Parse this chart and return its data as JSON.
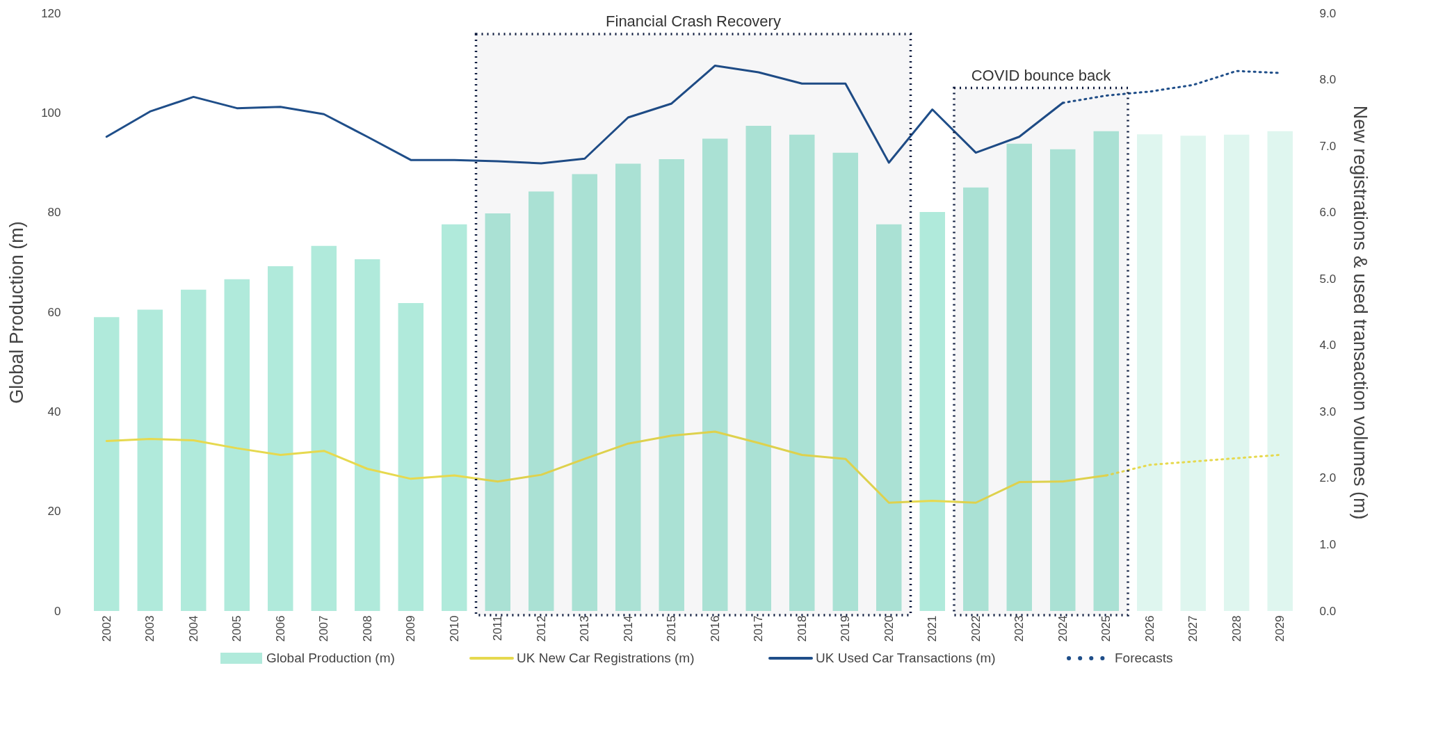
{
  "chart_data": {
    "type": "bar",
    "categories": [
      "2002",
      "2003",
      "2004",
      "2005",
      "2006",
      "2007",
      "2008",
      "2009",
      "2010",
      "2011",
      "2012",
      "2013",
      "2014",
      "2015",
      "2016",
      "2017",
      "2018",
      "2019",
      "2020",
      "2021",
      "2022",
      "2023",
      "2024",
      "2025",
      "2026",
      "2027",
      "2028",
      "2029"
    ],
    "series": [
      {
        "name": "Global Production (m)",
        "color": "#b0eadb",
        "colors": [
          "#b0eadb",
          "#b0eadb",
          "#b0eadb",
          "#b0eadb",
          "#b0eadb",
          "#b0eadb",
          "#b0eadb",
          "#b0eadb",
          "#b0eadb",
          "#b0eadb",
          "#b0eadb",
          "#b0eadb",
          "#b0eadb",
          "#b0eadb",
          "#b0eadb",
          "#b0eadb",
          "#b0eadb",
          "#b0eadb",
          "#b0eadb",
          "#b0eadb",
          "#b0eadb",
          "#b0eadb",
          "#b0eadb",
          "#b0eadb",
          "#dff6ef",
          "#dff6ef",
          "#dff6ef",
          "#dff6ef"
        ],
        "values": [
          59,
          60.5,
          64.5,
          66.6,
          69.2,
          73.3,
          70.6,
          61.8,
          77.6,
          79.8,
          84.2,
          87.7,
          89.8,
          90.7,
          94.8,
          97.4,
          95.6,
          92,
          77.6,
          80.1,
          85,
          93.8,
          92.7,
          96.3,
          95.7,
          95.4,
          95.6,
          96.3
        ]
      },
      {
        "name": "UK New Car Registrations (m)",
        "type": "line",
        "axis": "y2",
        "color": "#e6d94f",
        "values": [
          2.56,
          2.59,
          2.57,
          2.45,
          2.35,
          2.41,
          2.14,
          1.99,
          2.04,
          1.95,
          2.05,
          2.29,
          2.52,
          2.64,
          2.7,
          2.53,
          2.35,
          2.29,
          1.63,
          1.66,
          1.63,
          1.94,
          1.95,
          2.04,
          null,
          null,
          null,
          null
        ]
      },
      {
        "name": "UK Used Car Transactions (m)",
        "type": "line",
        "axis": "y2",
        "color": "#1f4e89",
        "values": [
          7.14,
          7.52,
          7.74,
          7.57,
          7.59,
          7.48,
          7.14,
          6.79,
          6.79,
          6.77,
          6.74,
          6.81,
          7.43,
          7.64,
          8.21,
          8.11,
          7.94,
          7.94,
          6.75,
          7.55,
          6.9,
          7.14,
          7.65,
          null,
          null,
          null,
          null,
          null
        ]
      },
      {
        "name": "Forecasts",
        "type": "line",
        "axis": "y2",
        "color": "#1f4e89",
        "line_style": "dotted",
        "values": [
          null,
          null,
          null,
          null,
          null,
          null,
          null,
          null,
          null,
          null,
          null,
          null,
          null,
          null,
          null,
          null,
          null,
          null,
          null,
          null,
          null,
          null,
          7.65,
          7.76,
          7.82,
          7.92,
          8.13,
          8.1
        ]
      },
      {
        "type": "line",
        "axis": "y2",
        "color": "#e6d94f",
        "line_style": "dotted",
        "values": [
          null,
          null,
          null,
          null,
          null,
          null,
          null,
          null,
          null,
          null,
          null,
          null,
          null,
          null,
          null,
          null,
          null,
          null,
          null,
          null,
          null,
          null,
          null,
          2.04,
          2.2,
          2.25,
          2.3,
          2.35
        ]
      }
    ],
    "ylabel": "Global Production (m)",
    "y2label": "New registrations & used transaction volumes (m)",
    "ylim": [
      0,
      120
    ],
    "yticks": [
      0,
      20,
      40,
      60,
      80,
      100,
      120
    ],
    "y2lim": [
      0,
      9
    ],
    "y2ticks": [
      {
        "value": 0,
        "label": "0.0"
      },
      {
        "value": 1,
        "label": "1.0"
      },
      {
        "value": 2,
        "label": "2.0"
      },
      {
        "value": 3,
        "label": "3.0"
      },
      {
        "value": 4,
        "label": "4.0"
      },
      {
        "value": 5,
        "label": "5.0"
      },
      {
        "value": 6,
        "label": "6.0"
      },
      {
        "value": 7,
        "label": "7.0"
      },
      {
        "value": 8,
        "label": "8.0"
      },
      {
        "value": 9,
        "label": "9.0"
      }
    ],
    "bands": [
      {
        "axis": "x",
        "from": "2011",
        "to": "2020",
        "label": "Financial Crash Recovery",
        "color": "#0d1b3e"
      },
      {
        "axis": "x",
        "from": "2022",
        "to": "2025",
        "label": "COVID bounce back",
        "color": "#0d1b3e"
      }
    ],
    "legend": "bottom",
    "grid": false
  }
}
